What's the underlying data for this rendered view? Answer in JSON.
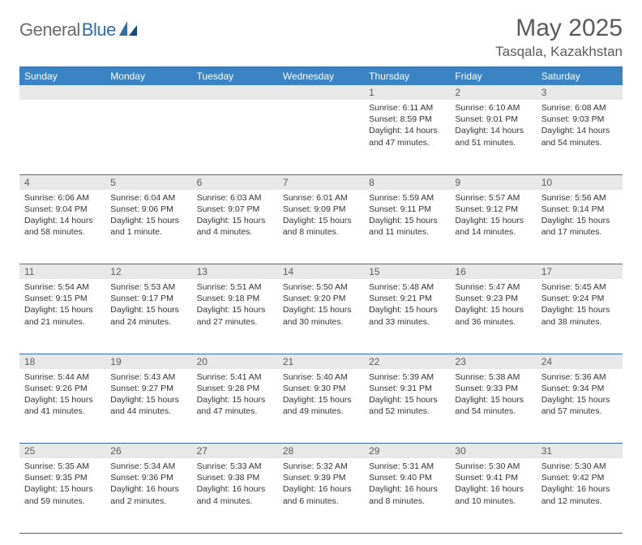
{
  "brand": {
    "part1": "General",
    "part2": "Blue"
  },
  "title": "May 2025",
  "location": "Tasqala, Kazakhstan",
  "colors": {
    "header_bg": "#3b84c4",
    "header_text": "#ffffff",
    "daynum_bg": "#e8e8e8",
    "rule": "#3b6da0",
    "text": "#333333",
    "title_text": "#5a5a5a"
  },
  "weekdays": [
    "Sunday",
    "Monday",
    "Tuesday",
    "Wednesday",
    "Thursday",
    "Friday",
    "Saturday"
  ],
  "weeks": [
    [
      null,
      null,
      null,
      null,
      {
        "n": "1",
        "sunrise": "6:11 AM",
        "sunset": "8:59 PM",
        "daylight": "14 hours and 47 minutes."
      },
      {
        "n": "2",
        "sunrise": "6:10 AM",
        "sunset": "9:01 PM",
        "daylight": "14 hours and 51 minutes."
      },
      {
        "n": "3",
        "sunrise": "6:08 AM",
        "sunset": "9:03 PM",
        "daylight": "14 hours and 54 minutes."
      }
    ],
    [
      {
        "n": "4",
        "sunrise": "6:06 AM",
        "sunset": "9:04 PM",
        "daylight": "14 hours and 58 minutes."
      },
      {
        "n": "5",
        "sunrise": "6:04 AM",
        "sunset": "9:06 PM",
        "daylight": "15 hours and 1 minute."
      },
      {
        "n": "6",
        "sunrise": "6:03 AM",
        "sunset": "9:07 PM",
        "daylight": "15 hours and 4 minutes."
      },
      {
        "n": "7",
        "sunrise": "6:01 AM",
        "sunset": "9:09 PM",
        "daylight": "15 hours and 8 minutes."
      },
      {
        "n": "8",
        "sunrise": "5:59 AM",
        "sunset": "9:11 PM",
        "daylight": "15 hours and 11 minutes."
      },
      {
        "n": "9",
        "sunrise": "5:57 AM",
        "sunset": "9:12 PM",
        "daylight": "15 hours and 14 minutes."
      },
      {
        "n": "10",
        "sunrise": "5:56 AM",
        "sunset": "9:14 PM",
        "daylight": "15 hours and 17 minutes."
      }
    ],
    [
      {
        "n": "11",
        "sunrise": "5:54 AM",
        "sunset": "9:15 PM",
        "daylight": "15 hours and 21 minutes."
      },
      {
        "n": "12",
        "sunrise": "5:53 AM",
        "sunset": "9:17 PM",
        "daylight": "15 hours and 24 minutes."
      },
      {
        "n": "13",
        "sunrise": "5:51 AM",
        "sunset": "9:18 PM",
        "daylight": "15 hours and 27 minutes."
      },
      {
        "n": "14",
        "sunrise": "5:50 AM",
        "sunset": "9:20 PM",
        "daylight": "15 hours and 30 minutes."
      },
      {
        "n": "15",
        "sunrise": "5:48 AM",
        "sunset": "9:21 PM",
        "daylight": "15 hours and 33 minutes."
      },
      {
        "n": "16",
        "sunrise": "5:47 AM",
        "sunset": "9:23 PM",
        "daylight": "15 hours and 36 minutes."
      },
      {
        "n": "17",
        "sunrise": "5:45 AM",
        "sunset": "9:24 PM",
        "daylight": "15 hours and 38 minutes."
      }
    ],
    [
      {
        "n": "18",
        "sunrise": "5:44 AM",
        "sunset": "9:26 PM",
        "daylight": "15 hours and 41 minutes."
      },
      {
        "n": "19",
        "sunrise": "5:43 AM",
        "sunset": "9:27 PM",
        "daylight": "15 hours and 44 minutes."
      },
      {
        "n": "20",
        "sunrise": "5:41 AM",
        "sunset": "9:28 PM",
        "daylight": "15 hours and 47 minutes."
      },
      {
        "n": "21",
        "sunrise": "5:40 AM",
        "sunset": "9:30 PM",
        "daylight": "15 hours and 49 minutes."
      },
      {
        "n": "22",
        "sunrise": "5:39 AM",
        "sunset": "9:31 PM",
        "daylight": "15 hours and 52 minutes."
      },
      {
        "n": "23",
        "sunrise": "5:38 AM",
        "sunset": "9:33 PM",
        "daylight": "15 hours and 54 minutes."
      },
      {
        "n": "24",
        "sunrise": "5:36 AM",
        "sunset": "9:34 PM",
        "daylight": "15 hours and 57 minutes."
      }
    ],
    [
      {
        "n": "25",
        "sunrise": "5:35 AM",
        "sunset": "9:35 PM",
        "daylight": "15 hours and 59 minutes."
      },
      {
        "n": "26",
        "sunrise": "5:34 AM",
        "sunset": "9:36 PM",
        "daylight": "16 hours and 2 minutes."
      },
      {
        "n": "27",
        "sunrise": "5:33 AM",
        "sunset": "9:38 PM",
        "daylight": "16 hours and 4 minutes."
      },
      {
        "n": "28",
        "sunrise": "5:32 AM",
        "sunset": "9:39 PM",
        "daylight": "16 hours and 6 minutes."
      },
      {
        "n": "29",
        "sunrise": "5:31 AM",
        "sunset": "9:40 PM",
        "daylight": "16 hours and 8 minutes."
      },
      {
        "n": "30",
        "sunrise": "5:30 AM",
        "sunset": "9:41 PM",
        "daylight": "16 hours and 10 minutes."
      },
      {
        "n": "31",
        "sunrise": "5:30 AM",
        "sunset": "9:42 PM",
        "daylight": "16 hours and 12 minutes."
      }
    ]
  ],
  "labels": {
    "sunrise": "Sunrise:",
    "sunset": "Sunset:",
    "daylight": "Daylight:"
  }
}
